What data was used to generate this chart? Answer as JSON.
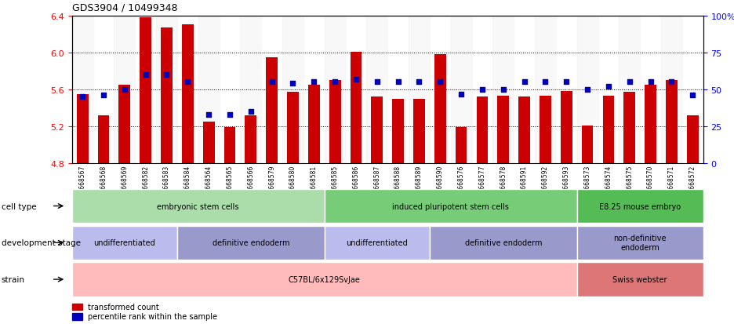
{
  "title": "GDS3904 / 10499348",
  "samples": [
    "GSM668567",
    "GSM668568",
    "GSM668569",
    "GSM668582",
    "GSM668583",
    "GSM668584",
    "GSM668564",
    "GSM668565",
    "GSM668566",
    "GSM668579",
    "GSM668580",
    "GSM668581",
    "GSM668585",
    "GSM668586",
    "GSM668587",
    "GSM668588",
    "GSM668589",
    "GSM668590",
    "GSM668576",
    "GSM668577",
    "GSM668578",
    "GSM668591",
    "GSM668592",
    "GSM668593",
    "GSM668573",
    "GSM668574",
    "GSM668575",
    "GSM668570",
    "GSM668571",
    "GSM668572"
  ],
  "bar_values": [
    5.55,
    5.32,
    5.65,
    6.38,
    6.27,
    6.3,
    5.25,
    5.19,
    5.32,
    5.95,
    5.57,
    5.65,
    5.7,
    6.01,
    5.52,
    5.5,
    5.5,
    5.98,
    5.19,
    5.52,
    5.53,
    5.52,
    5.53,
    5.58,
    5.21,
    5.53,
    5.57,
    5.65,
    5.7,
    5.32
  ],
  "percentile_pct": [
    45,
    46,
    50,
    60,
    60,
    55,
    33,
    33,
    35,
    55,
    54,
    55,
    55,
    57,
    55,
    55,
    55,
    55,
    47,
    50,
    50,
    55,
    55,
    55,
    50,
    52,
    55,
    55,
    55,
    46
  ],
  "ylim_left": [
    4.8,
    6.4
  ],
  "ylim_right": [
    0,
    100
  ],
  "yticks_left": [
    4.8,
    5.2,
    5.6,
    6.0,
    6.4
  ],
  "yticks_right": [
    0,
    25,
    50,
    75,
    100
  ],
  "bar_color": "#CC0000",
  "dot_color": "#0000BB",
  "cell_type_groups": [
    {
      "label": "embryonic stem cells",
      "start": 0,
      "end": 11,
      "color": "#AADDAA"
    },
    {
      "label": "induced pluripotent stem cells",
      "start": 12,
      "end": 23,
      "color": "#77CC77"
    },
    {
      "label": "E8.25 mouse embryo",
      "start": 24,
      "end": 29,
      "color": "#55BB55"
    }
  ],
  "dev_stage_groups": [
    {
      "label": "undifferentiated",
      "start": 0,
      "end": 4,
      "color": "#BBBBEE"
    },
    {
      "label": "definitive endoderm",
      "start": 5,
      "end": 11,
      "color": "#9999CC"
    },
    {
      "label": "undifferentiated",
      "start": 12,
      "end": 16,
      "color": "#BBBBEE"
    },
    {
      "label": "definitive endoderm",
      "start": 17,
      "end": 23,
      "color": "#9999CC"
    },
    {
      "label": "non-definitive\nendoderm",
      "start": 24,
      "end": 29,
      "color": "#9999CC"
    }
  ],
  "strain_groups": [
    {
      "label": "C57BL/6x129SvJae",
      "start": 0,
      "end": 23,
      "color": "#FFBBBB"
    },
    {
      "label": "Swiss webster",
      "start": 24,
      "end": 29,
      "color": "#DD7777"
    }
  ],
  "legend_items": [
    {
      "label": "transformed count",
      "color": "#CC0000"
    },
    {
      "label": "percentile rank within the sample",
      "color": "#0000BB"
    }
  ]
}
